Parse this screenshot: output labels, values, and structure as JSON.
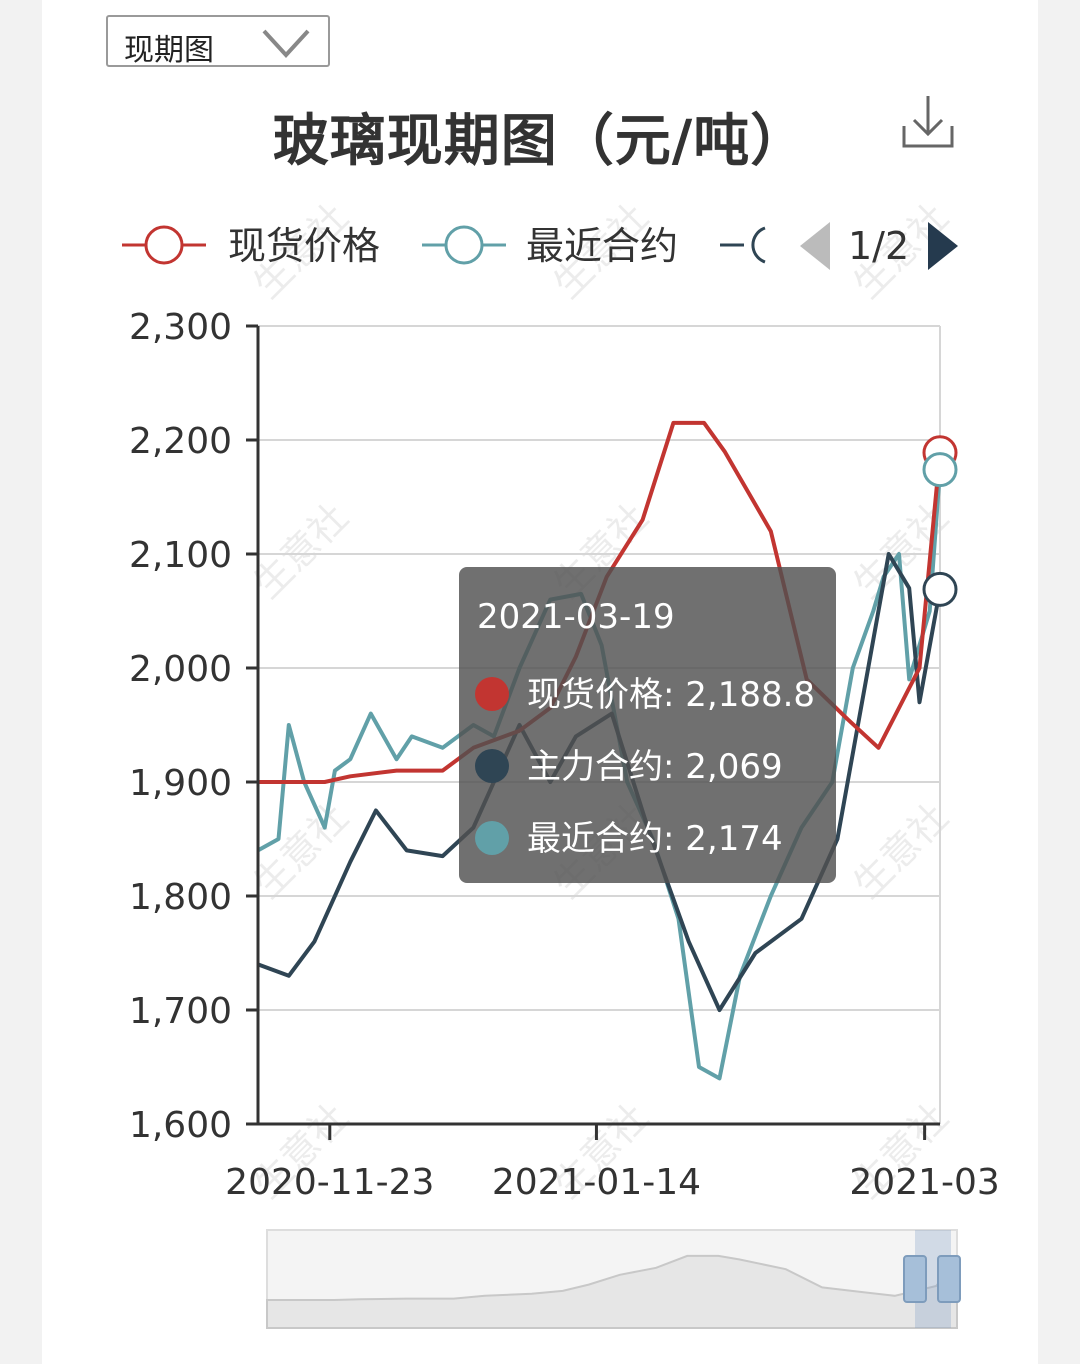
{
  "dropdown": {
    "selected": "现期图"
  },
  "title": "玻璃现期图（元/吨）",
  "legend": {
    "items": [
      {
        "label": "现货价格",
        "color": "#c23531"
      },
      {
        "label": "最近合约",
        "color": "#61a0a8"
      }
    ],
    "truncated_item_color": "#2f4554",
    "page": "1/2"
  },
  "watermark": "生意社",
  "tooltip": {
    "date": "2021-03-19",
    "rows": [
      {
        "label": "现货价格: 2,188.8",
        "color": "#c23531"
      },
      {
        "label": "主力合约: 2,069",
        "color": "#2f4554"
      },
      {
        "label": "最近合约: 2,174",
        "color": "#61a0a8"
      }
    ]
  },
  "chart_data": {
    "type": "line",
    "title": "玻璃现期图（元/吨）",
    "x_ticks": [
      "2020-11-23",
      "2021-01-14",
      "2021-03-19"
    ],
    "x_tick_labels": [
      "2020-11-23",
      "2021-01-14",
      "2021-03"
    ],
    "y_ticks": [
      "1,600",
      "1,700",
      "1,800",
      "1,900",
      "2,000",
      "2,100",
      "2,200",
      "2,300"
    ],
    "ylim": [
      1600,
      2300
    ],
    "x_span_days": 133,
    "grid": true,
    "legend_position": "top",
    "series": [
      {
        "name": "现货价格",
        "color": "#c23531",
        "x": [
          0,
          13,
          18,
          27,
          36,
          42,
          51,
          57,
          62,
          68,
          75,
          81,
          87,
          91,
          100,
          107,
          115,
          121,
          129,
          133
        ],
        "y": [
          1900,
          1900,
          1905,
          1910,
          1910,
          1930,
          1945,
          1965,
          2010,
          2080,
          2130,
          2215,
          2215,
          2190,
          2120,
          1990,
          1955,
          1930,
          2000,
          2188.8
        ]
      },
      {
        "name": "主力合约",
        "color": "#2f4554",
        "x": [
          0,
          6,
          11,
          18,
          23,
          29,
          36,
          42,
          51,
          57,
          62,
          69,
          76,
          84,
          90,
          97,
          106,
          113,
          119,
          123,
          127,
          129,
          133
        ],
        "y": [
          1740,
          1730,
          1760,
          1830,
          1875,
          1840,
          1835,
          1860,
          1950,
          1900,
          1940,
          1960,
          1860,
          1760,
          1700,
          1750,
          1780,
          1850,
          2000,
          2100,
          2070,
          1970,
          2069
        ]
      },
      {
        "name": "最近合约",
        "color": "#61a0a8",
        "x": [
          0,
          4,
          6,
          9,
          13,
          15,
          18,
          22,
          27,
          30,
          36,
          42,
          46,
          51,
          57,
          63,
          67,
          72,
          77,
          82,
          86,
          90,
          94,
          100,
          106,
          112,
          116,
          120,
          122,
          125,
          127,
          131,
          133
        ],
        "y": [
          1840,
          1850,
          1950,
          1900,
          1860,
          1910,
          1920,
          1960,
          1920,
          1940,
          1930,
          1950,
          1940,
          2000,
          2060,
          2065,
          2020,
          1900,
          1850,
          1780,
          1650,
          1640,
          1730,
          1800,
          1860,
          1900,
          2000,
          2050,
          2080,
          2100,
          1990,
          2050,
          2174
        ]
      }
    ]
  }
}
